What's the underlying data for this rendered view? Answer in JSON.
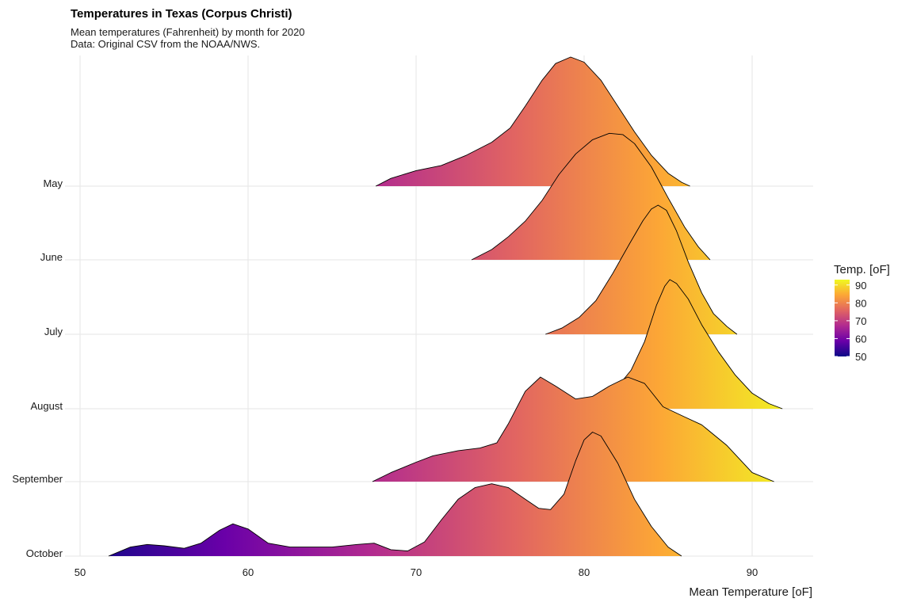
{
  "chart_data": {
    "type": "ridgeline",
    "title": "Temperatures in Texas (Corpus Christi)",
    "subtitle": [
      "Mean temperatures (Fahrenheit) by month for 2020",
      "Data: Original CSV from the NOAA/NWS."
    ],
    "xlabel": "Mean Temperature [oF]",
    "ylabel": "",
    "xlim": [
      50,
      93.5
    ],
    "x_ticks": [
      50,
      60,
      70,
      80,
      90
    ],
    "categories": [
      "May",
      "June",
      "July",
      "August",
      "September",
      "October"
    ],
    "legend": {
      "title": "Temp. [oF]",
      "placement": "right",
      "ticks": [
        90,
        80,
        70,
        60,
        50
      ],
      "range": [
        50,
        93
      ],
      "colors": [
        "#0d0887",
        "#6a00a8",
        "#b12a90",
        "#e16462",
        "#fca636",
        "#f0f921"
      ]
    },
    "series": [
      {
        "name": "May",
        "points": [
          [
            67.6,
            0.0
          ],
          [
            68.5,
            0.06
          ],
          [
            70.0,
            0.12
          ],
          [
            71.5,
            0.16
          ],
          [
            73.0,
            0.24
          ],
          [
            74.5,
            0.34
          ],
          [
            75.6,
            0.45
          ],
          [
            76.5,
            0.62
          ],
          [
            77.5,
            0.82
          ],
          [
            78.3,
            0.95
          ],
          [
            79.2,
            1.0
          ],
          [
            80.0,
            0.96
          ],
          [
            81.0,
            0.82
          ],
          [
            82.0,
            0.62
          ],
          [
            83.0,
            0.42
          ],
          [
            84.0,
            0.24
          ],
          [
            85.0,
            0.1
          ],
          [
            85.8,
            0.03
          ],
          [
            86.3,
            0.0
          ]
        ]
      },
      {
        "name": "June",
        "points": [
          [
            73.3,
            0.0
          ],
          [
            74.5,
            0.08
          ],
          [
            75.5,
            0.18
          ],
          [
            76.5,
            0.3
          ],
          [
            77.5,
            0.46
          ],
          [
            78.5,
            0.66
          ],
          [
            79.5,
            0.82
          ],
          [
            80.5,
            0.93
          ],
          [
            81.5,
            0.98
          ],
          [
            82.3,
            0.97
          ],
          [
            83.0,
            0.9
          ],
          [
            84.0,
            0.72
          ],
          [
            85.0,
            0.48
          ],
          [
            86.0,
            0.25
          ],
          [
            86.8,
            0.1
          ],
          [
            87.5,
            0.0
          ]
        ]
      },
      {
        "name": "July",
        "points": [
          [
            77.7,
            0.0
          ],
          [
            78.7,
            0.05
          ],
          [
            79.7,
            0.13
          ],
          [
            80.7,
            0.26
          ],
          [
            81.7,
            0.47
          ],
          [
            82.7,
            0.7
          ],
          [
            83.5,
            0.88
          ],
          [
            84.0,
            0.97
          ],
          [
            84.4,
            1.0
          ],
          [
            84.9,
            0.96
          ],
          [
            85.5,
            0.8
          ],
          [
            86.2,
            0.56
          ],
          [
            87.0,
            0.32
          ],
          [
            87.7,
            0.16
          ],
          [
            88.5,
            0.06
          ],
          [
            89.1,
            0.0
          ]
        ]
      },
      {
        "name": "August",
        "points": [
          [
            79.8,
            0.0
          ],
          [
            80.8,
            0.05
          ],
          [
            81.8,
            0.14
          ],
          [
            82.8,
            0.3
          ],
          [
            83.6,
            0.52
          ],
          [
            84.3,
            0.8
          ],
          [
            84.8,
            0.95
          ],
          [
            85.1,
            1.0
          ],
          [
            85.5,
            0.97
          ],
          [
            86.2,
            0.85
          ],
          [
            87.0,
            0.65
          ],
          [
            88.0,
            0.44
          ],
          [
            89.0,
            0.26
          ],
          [
            90.0,
            0.12
          ],
          [
            91.0,
            0.04
          ],
          [
            91.8,
            0.0
          ]
        ]
      },
      {
        "name": "September",
        "points": [
          [
            67.4,
            0.0
          ],
          [
            68.5,
            0.07
          ],
          [
            70.0,
            0.15
          ],
          [
            71.0,
            0.2
          ],
          [
            72.5,
            0.24
          ],
          [
            73.8,
            0.26
          ],
          [
            74.8,
            0.3
          ],
          [
            75.5,
            0.45
          ],
          [
            76.5,
            0.7
          ],
          [
            77.4,
            0.81
          ],
          [
            78.3,
            0.74
          ],
          [
            79.5,
            0.64
          ],
          [
            80.5,
            0.66
          ],
          [
            81.5,
            0.74
          ],
          [
            82.6,
            0.81
          ],
          [
            83.6,
            0.76
          ],
          [
            84.7,
            0.58
          ],
          [
            86.0,
            0.5
          ],
          [
            87.0,
            0.44
          ],
          [
            88.5,
            0.28
          ],
          [
            90.0,
            0.07
          ],
          [
            91.3,
            0.0
          ]
        ]
      },
      {
        "name": "October",
        "points": [
          [
            51.7,
            0.0
          ],
          [
            53.0,
            0.07
          ],
          [
            54.0,
            0.09
          ],
          [
            55.0,
            0.08
          ],
          [
            56.2,
            0.06
          ],
          [
            57.2,
            0.1
          ],
          [
            58.3,
            0.2
          ],
          [
            59.1,
            0.25
          ],
          [
            60.0,
            0.21
          ],
          [
            61.2,
            0.1
          ],
          [
            62.5,
            0.07
          ],
          [
            65.0,
            0.07
          ],
          [
            66.5,
            0.09
          ],
          [
            67.5,
            0.1
          ],
          [
            68.5,
            0.05
          ],
          [
            69.5,
            0.04
          ],
          [
            70.5,
            0.11
          ],
          [
            71.5,
            0.28
          ],
          [
            72.5,
            0.44
          ],
          [
            73.5,
            0.53
          ],
          [
            74.5,
            0.56
          ],
          [
            75.5,
            0.53
          ],
          [
            76.5,
            0.44
          ],
          [
            77.3,
            0.37
          ],
          [
            78.0,
            0.36
          ],
          [
            78.8,
            0.48
          ],
          [
            79.5,
            0.74
          ],
          [
            80.0,
            0.9
          ],
          [
            80.5,
            0.96
          ],
          [
            81.0,
            0.93
          ],
          [
            82.0,
            0.72
          ],
          [
            83.0,
            0.44
          ],
          [
            84.0,
            0.23
          ],
          [
            85.0,
            0.07
          ],
          [
            85.8,
            0.0
          ]
        ]
      }
    ]
  }
}
